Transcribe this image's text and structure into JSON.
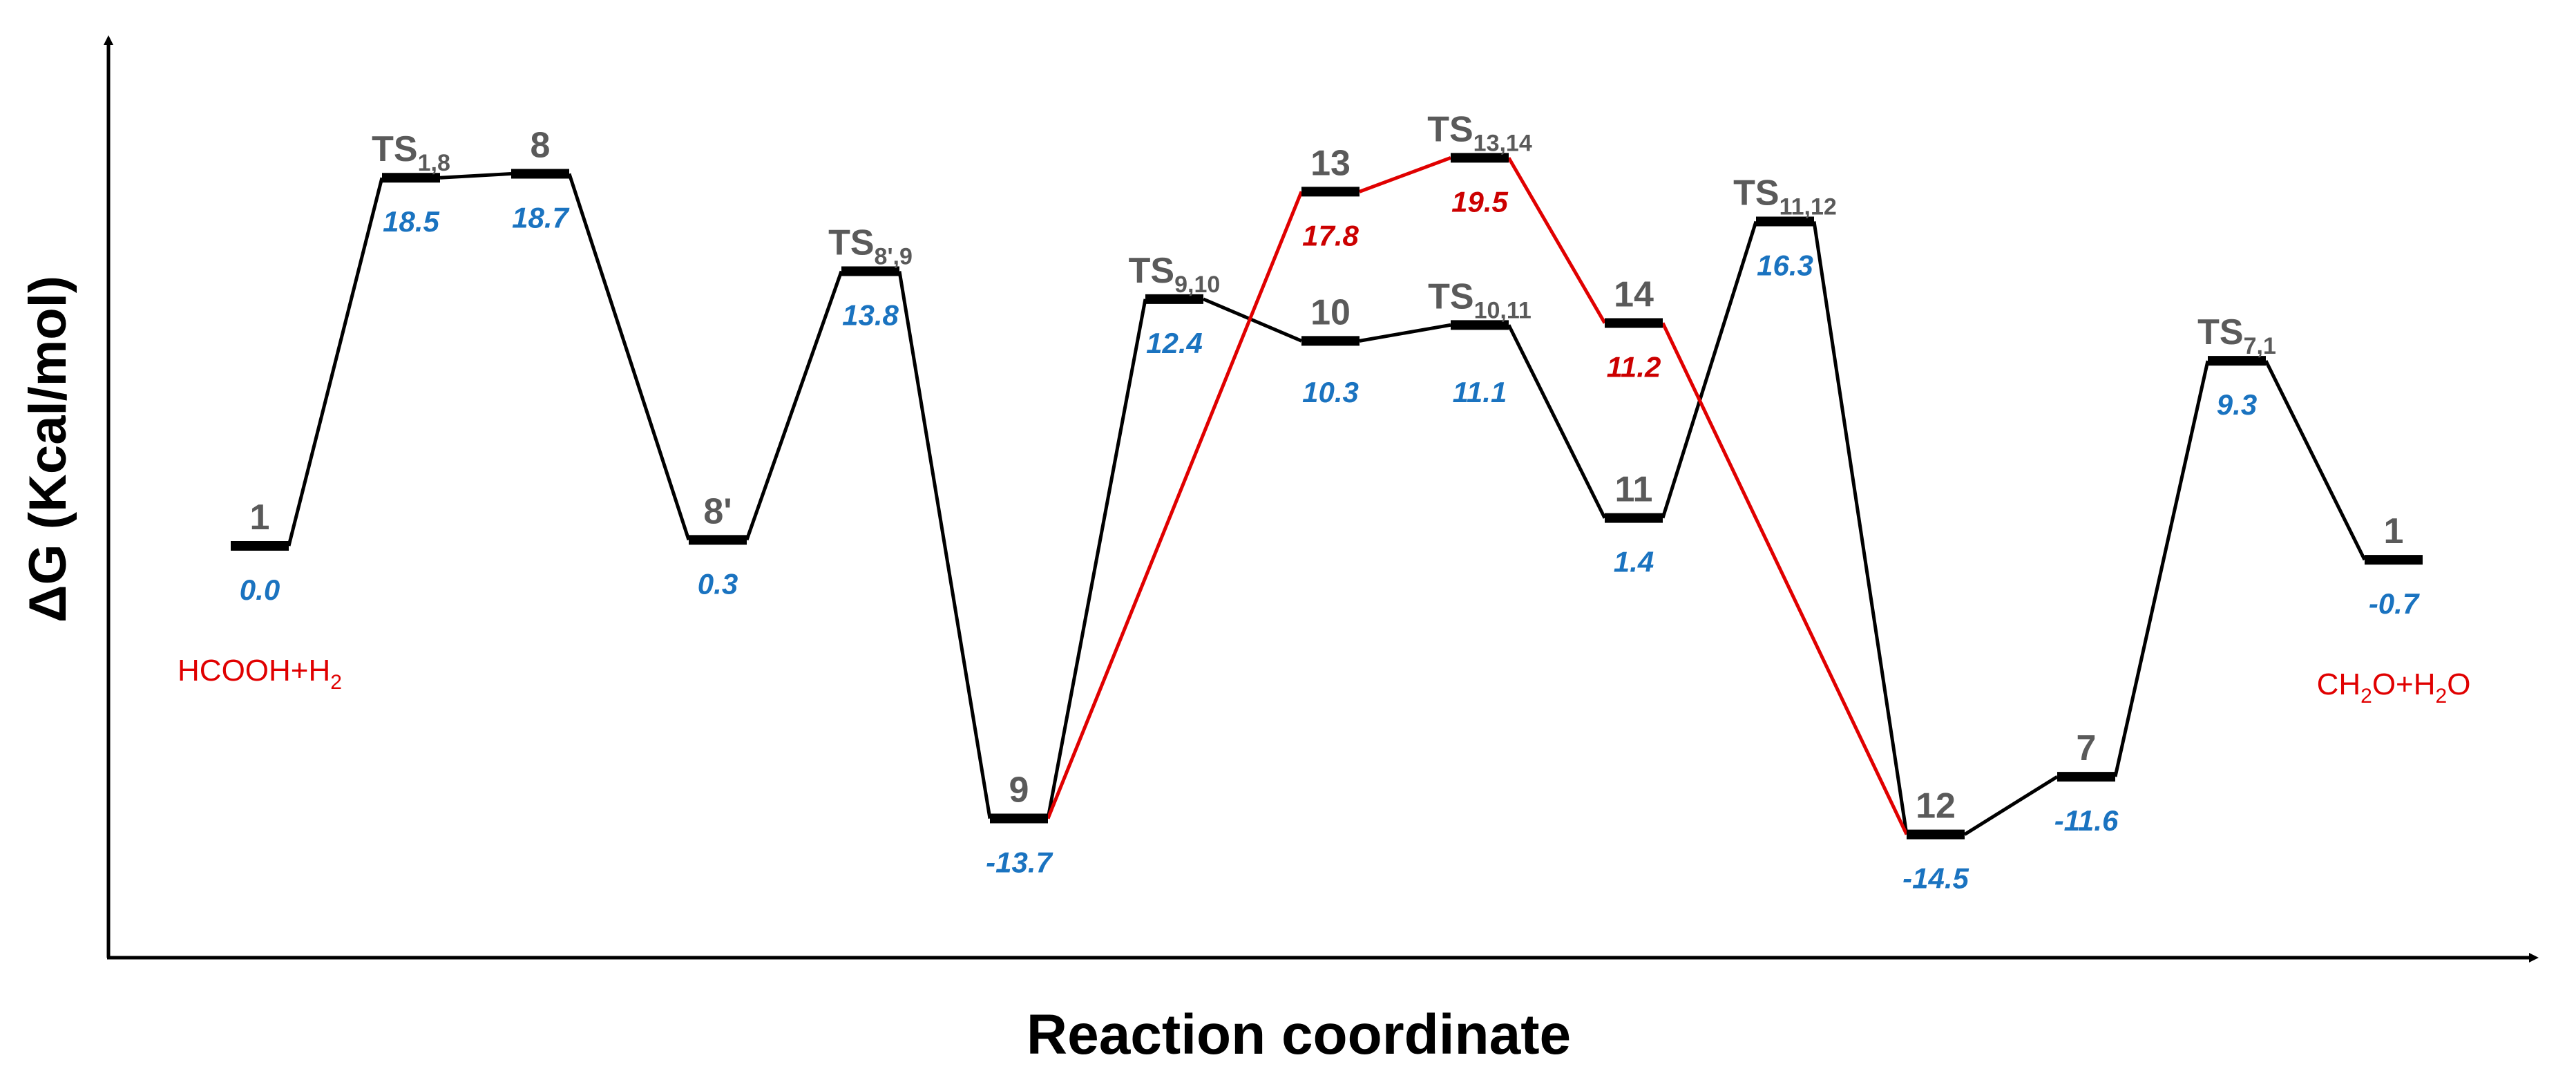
{
  "chart_data": {
    "type": "line",
    "title": "",
    "xlabel": "Reaction coordinate",
    "ylabel": "ΔG (Kcal/mol)",
    "ylim": [
      -20,
      25
    ],
    "grid": false,
    "colors": {
      "main_path": "#000000",
      "alt_path": "#e00000",
      "values": "#1a73c0",
      "alt_values": "#cc0000",
      "state_labels": "#5a5a5a",
      "species": "#e00000"
    },
    "states": [
      {
        "id": "s1",
        "label": "1",
        "sub": "",
        "energy": 0.0,
        "value": "0.0",
        "path": "main"
      },
      {
        "id": "ts18",
        "label": "TS",
        "sub": "1,8",
        "energy": 18.5,
        "value": "18.5",
        "path": "main"
      },
      {
        "id": "s8",
        "label": "8",
        "sub": "",
        "energy": 18.7,
        "value": "18.7",
        "path": "main"
      },
      {
        "id": "s8p",
        "label": "8'",
        "sub": "",
        "energy": 0.3,
        "value": "0.3",
        "path": "main"
      },
      {
        "id": "ts8p9",
        "label": "TS",
        "sub": "8',9",
        "energy": 13.8,
        "value": "13.8",
        "path": "main"
      },
      {
        "id": "s9",
        "label": "9",
        "sub": "",
        "energy": -13.7,
        "value": "-13.7",
        "path": "main"
      },
      {
        "id": "ts910",
        "label": "TS",
        "sub": "9,10",
        "energy": 12.4,
        "value": "12.4",
        "path": "main"
      },
      {
        "id": "s10",
        "label": "10",
        "sub": "",
        "energy": 10.3,
        "value": "10.3",
        "path": "main"
      },
      {
        "id": "ts1011",
        "label": "TS",
        "sub": "10,11",
        "energy": 11.1,
        "value": "11.1",
        "path": "main"
      },
      {
        "id": "s11",
        "label": "11",
        "sub": "",
        "energy": 1.4,
        "value": "1.4",
        "path": "main"
      },
      {
        "id": "ts1112",
        "label": "TS",
        "sub": "11,12",
        "energy": 16.3,
        "value": "16.3",
        "path": "main"
      },
      {
        "id": "s12",
        "label": "12",
        "sub": "",
        "energy": -14.5,
        "value": "-14.5",
        "path": "main"
      },
      {
        "id": "s7",
        "label": "7",
        "sub": "",
        "energy": -11.6,
        "value": "-11.6",
        "path": "main"
      },
      {
        "id": "ts71",
        "label": "TS",
        "sub": "7,1",
        "energy": 9.3,
        "value": "9.3",
        "path": "main"
      },
      {
        "id": "s1end",
        "label": "1",
        "sub": "",
        "energy": -0.7,
        "value": "-0.7",
        "path": "main"
      },
      {
        "id": "s13",
        "label": "13",
        "sub": "",
        "energy": 17.8,
        "value": "17.8",
        "path": "alt"
      },
      {
        "id": "ts1314",
        "label": "TS",
        "sub": "13,14",
        "energy": 19.5,
        "value": "19.5",
        "path": "alt"
      },
      {
        "id": "s14",
        "label": "14",
        "sub": "",
        "energy": 11.2,
        "value": "11.2",
        "path": "alt"
      }
    ],
    "main_path": [
      "s1",
      "ts18",
      "s8",
      "s8p",
      "ts8p9",
      "s9",
      "ts910",
      "s10",
      "ts1011",
      "s11",
      "ts1112",
      "s12",
      "s7",
      "ts71",
      "s1end"
    ],
    "alt_path": [
      "s9",
      "s13",
      "ts1314",
      "s14",
      "s12"
    ],
    "annotations": [
      {
        "id": "reactants",
        "text": "HCOOH+H",
        "sub": "2",
        "tail": "",
        "anchor": "s1"
      },
      {
        "id": "products",
        "text": "CH",
        "sub": "2",
        "tail": "O+H",
        "sub2": "2",
        "tail2": "O",
        "anchor": "s1end"
      }
    ]
  }
}
